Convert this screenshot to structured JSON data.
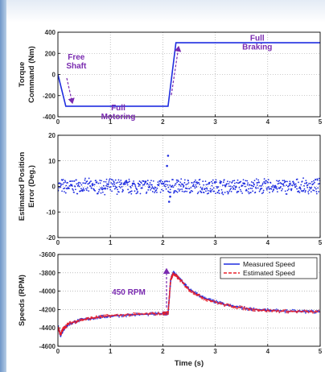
{
  "chart_data": [
    {
      "type": "line",
      "ylabel": [
        "Torque",
        "Command (Nm)"
      ],
      "xlim": [
        0,
        5
      ],
      "ylim": [
        -400,
        400
      ],
      "xticks": [
        0,
        1,
        2,
        3,
        4,
        5
      ],
      "yticks": [
        -400,
        -200,
        0,
        200,
        400
      ],
      "grid": true,
      "series": [
        {
          "color": "#1f2de0",
          "x": [
            0,
            0.15,
            2.1,
            2.25,
            5
          ],
          "y": [
            0,
            -300,
            -300,
            300,
            300
          ]
        }
      ],
      "annotations": [
        {
          "text": [
            "Free",
            "Shaft"
          ],
          "x": 0.35,
          "y": 140
        },
        {
          "text": [
            "Full",
            "Motoring"
          ],
          "x": 1.15,
          "y": -340
        },
        {
          "text": [
            "Full",
            "Braking"
          ],
          "x": 3.8,
          "y": 320
        }
      ]
    },
    {
      "type": "scatter",
      "ylabel": [
        "Estimated Position",
        "Error (Deg.)"
      ],
      "xlim": [
        0,
        5
      ],
      "ylim": [
        -20,
        20
      ],
      "xticks": [
        0,
        1,
        2,
        3,
        4,
        5
      ],
      "yticks": [
        -20,
        -10,
        0,
        10,
        20
      ],
      "grid": true,
      "series": [
        {
          "color": "#1f2de0",
          "noise_band": [
            -2.5,
            2.5
          ],
          "x": [
            2.08,
            2.1,
            2.12,
            2.14
          ],
          "y": [
            8,
            12,
            -6,
            -4
          ]
        }
      ]
    },
    {
      "type": "line",
      "ylabel": [
        "Speeds (RPM)"
      ],
      "xlabel": "Time (s)",
      "xlim": [
        0,
        5
      ],
      "ylim": [
        -4600,
        -3600
      ],
      "xticks": [
        0,
        1,
        2,
        3,
        4,
        5
      ],
      "yticks": [
        -4600,
        -4400,
        -4200,
        -4000,
        -3800,
        -3600
      ],
      "grid": true,
      "legend": "top-right",
      "series": [
        {
          "name": "Measured Speed",
          "color": "#1f2de0",
          "style": "solid",
          "x": [
            0,
            0.05,
            0.1,
            0.2,
            0.4,
            0.7,
            1.0,
            1.5,
            2.0,
            2.1,
            2.15,
            2.2,
            2.3,
            2.5,
            2.8,
            3.2,
            3.6,
            4.0,
            4.5,
            5.0
          ],
          "y": [
            -4380,
            -4480,
            -4420,
            -4360,
            -4320,
            -4290,
            -4270,
            -4255,
            -4245,
            -4240,
            -3880,
            -3800,
            -3850,
            -3980,
            -4080,
            -4150,
            -4190,
            -4210,
            -4220,
            -4225
          ]
        },
        {
          "name": "Estimated Speed",
          "color": "#e8202a",
          "style": "dashed",
          "x": [
            0,
            0.05,
            0.1,
            0.2,
            0.4,
            0.7,
            1.0,
            1.5,
            2.0,
            2.1,
            2.15,
            2.2,
            2.3,
            2.5,
            2.8,
            3.2,
            3.6,
            4.0,
            4.5,
            5.0
          ],
          "y": [
            -4390,
            -4470,
            -4410,
            -4355,
            -4318,
            -4288,
            -4268,
            -4253,
            -4243,
            -4238,
            -3870,
            -3810,
            -3860,
            -3985,
            -4085,
            -4152,
            -4192,
            -4212,
            -4222,
            -4226
          ]
        }
      ],
      "annotations": [
        {
          "text": [
            "450 RPM"
          ],
          "x": 1.35,
          "y": -4040
        }
      ]
    }
  ]
}
